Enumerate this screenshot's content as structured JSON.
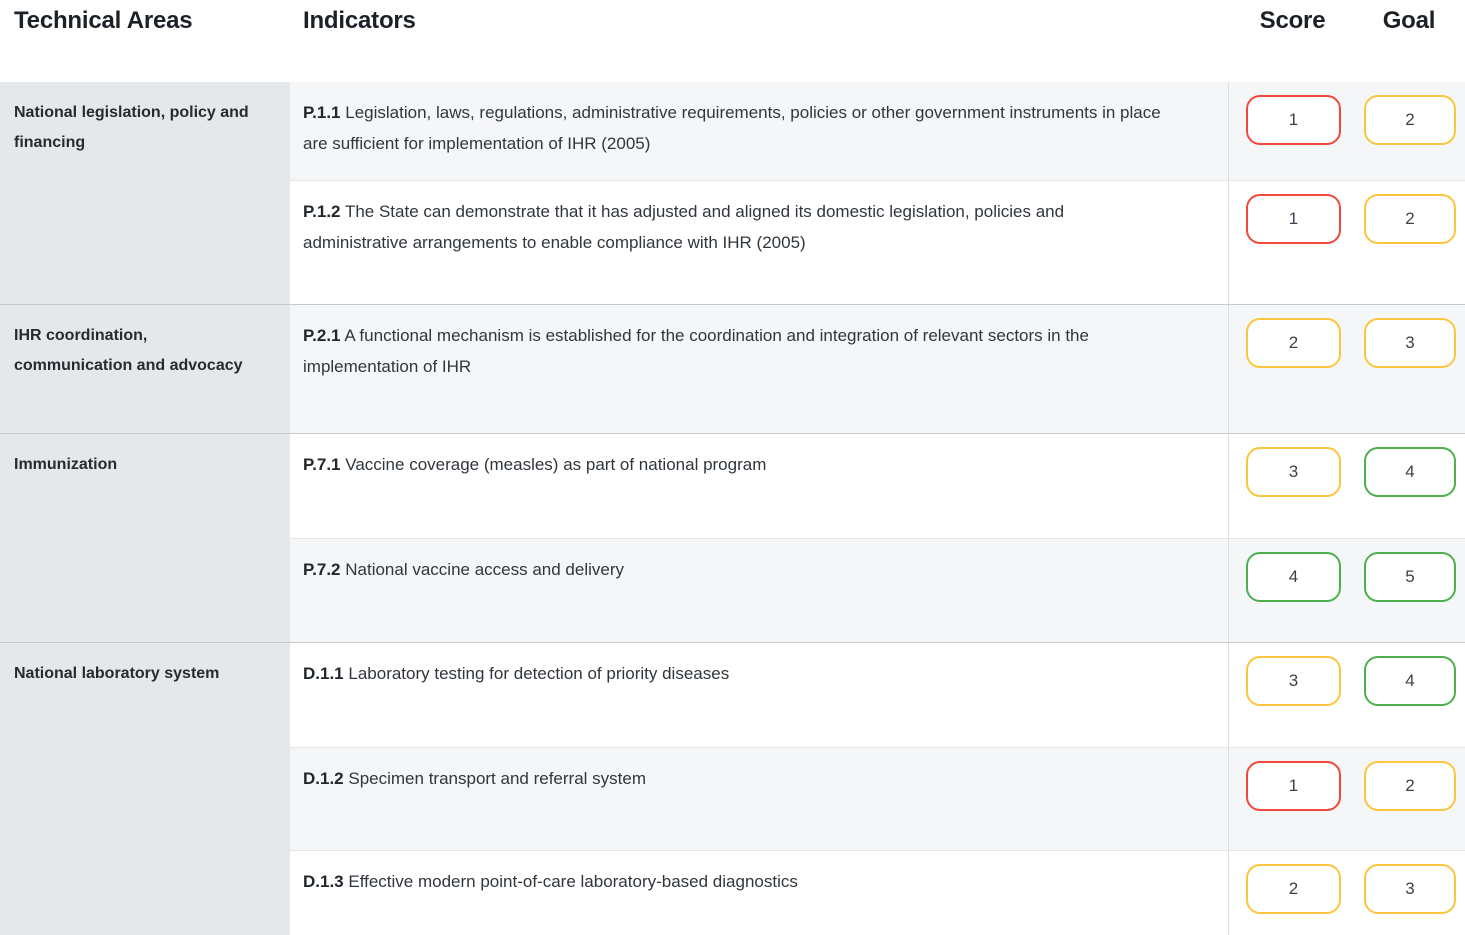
{
  "palette": {
    "red": "#f2473d",
    "yellow": "#fcc53f",
    "green": "#4caf50"
  },
  "header": {
    "technical_areas": "Technical Areas",
    "indicators": "Indicators",
    "score": "Score",
    "goal": "Goal"
  },
  "groups": [
    {
      "area": "National legislation, policy and financing",
      "rows": [
        {
          "code": "P.1.1",
          "text": "Legislation, laws, regulations, administrative requirements, policies or other government instruments in place are sufficient for implementation of IHR (2005)",
          "score": {
            "value": "1",
            "color": "red"
          },
          "goal": {
            "value": "2",
            "color": "yellow"
          }
        },
        {
          "code": "P.1.2",
          "text": "The State can demonstrate that it has adjusted and aligned its domestic legislation, policies and administrative arrangements to enable compliance with IHR (2005)",
          "score": {
            "value": "1",
            "color": "red"
          },
          "goal": {
            "value": "2",
            "color": "yellow"
          }
        }
      ]
    },
    {
      "area": "IHR coordination, communication and advocacy",
      "rows": [
        {
          "code": "P.2.1",
          "text": "A functional mechanism is established for the coordination and integration of relevant sectors in the implementation of IHR",
          "score": {
            "value": "2",
            "color": "yellow"
          },
          "goal": {
            "value": "3",
            "color": "yellow"
          }
        }
      ]
    },
    {
      "area": "Immunization",
      "rows": [
        {
          "code": "P.7.1",
          "text": "Vaccine coverage (measles) as part of national program",
          "score": {
            "value": "3",
            "color": "yellow"
          },
          "goal": {
            "value": "4",
            "color": "green"
          }
        },
        {
          "code": "P.7.2",
          "text": "National vaccine access and delivery",
          "score": {
            "value": "4",
            "color": "green"
          },
          "goal": {
            "value": "5",
            "color": "green"
          }
        }
      ]
    },
    {
      "area": "National laboratory system",
      "rows": [
        {
          "code": "D.1.1",
          "text": "Laboratory testing for detection of priority diseases",
          "score": {
            "value": "3",
            "color": "yellow"
          },
          "goal": {
            "value": "4",
            "color": "green"
          }
        },
        {
          "code": "D.1.2",
          "text": "Specimen transport and referral system",
          "score": {
            "value": "1",
            "color": "red"
          },
          "goal": {
            "value": "2",
            "color": "yellow"
          }
        },
        {
          "code": "D.1.3",
          "text": "Effective modern point-of-care laboratory-based diagnostics",
          "score": {
            "value": "2",
            "color": "yellow"
          },
          "goal": {
            "value": "3",
            "color": "yellow"
          }
        }
      ]
    }
  ]
}
